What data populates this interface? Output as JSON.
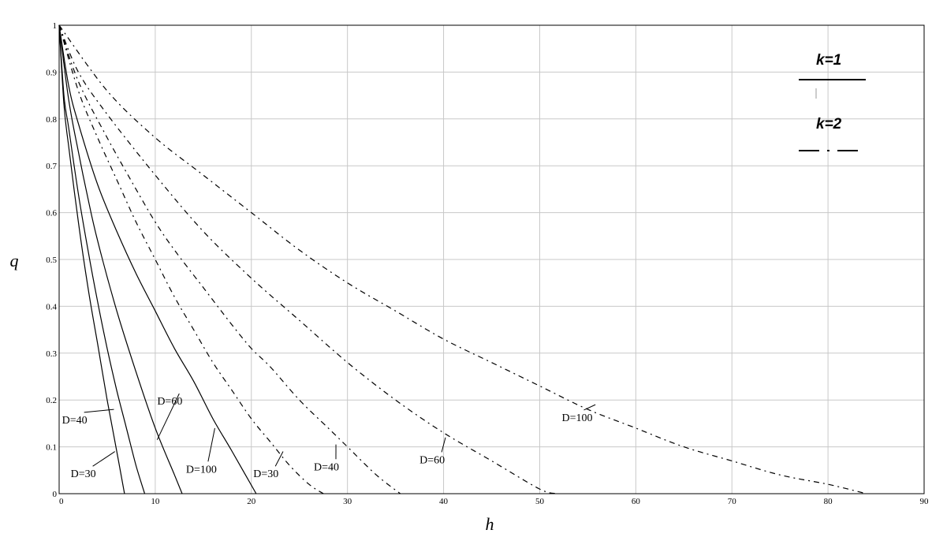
{
  "chart_data": {
    "type": "line",
    "xlabel": "h",
    "ylabel": "q",
    "xlim": [
      0,
      90
    ],
    "ylim": [
      0,
      1
    ],
    "x_ticks": [
      "0",
      "10",
      "20",
      "30",
      "40",
      "50",
      "60",
      "70",
      "80",
      "90"
    ],
    "y_ticks": [
      "0",
      "0.1",
      "0.2",
      "0.3",
      "0.4",
      "0.5",
      "0.6",
      "0.7",
      "0.8",
      "0.9",
      "1"
    ],
    "grid": true,
    "legend_position": "top-right",
    "legend": [
      {
        "label": "k=1",
        "line_style": "solid"
      },
      {
        "label": "k=2",
        "line_style": "dash-dot"
      }
    ],
    "series": [
      {
        "name": "D=30",
        "k": 1,
        "line_style": "solid",
        "x": [
          0,
          0.5,
          1,
          2,
          3,
          4,
          5,
          6,
          6.8
        ],
        "y": [
          1,
          0.83,
          0.74,
          0.58,
          0.44,
          0.32,
          0.2,
          0.09,
          0
        ]
      },
      {
        "name": "D=40",
        "k": 1,
        "line_style": "solid",
        "x": [
          0,
          0.5,
          1,
          2,
          3,
          4,
          5,
          6,
          7,
          8,
          8.9
        ],
        "y": [
          1,
          0.85,
          0.78,
          0.64,
          0.52,
          0.41,
          0.31,
          0.22,
          0.14,
          0.06,
          0
        ]
      },
      {
        "name": "D=60",
        "k": 1,
        "line_style": "solid",
        "x": [
          0,
          1,
          2,
          3,
          4,
          6,
          8,
          10,
          12,
          12.8
        ],
        "y": [
          1,
          0.84,
          0.73,
          0.63,
          0.54,
          0.39,
          0.26,
          0.14,
          0.04,
          0
        ]
      },
      {
        "name": "D=100",
        "k": 1,
        "line_style": "solid",
        "x": [
          0,
          1,
          2,
          4,
          6,
          8,
          10,
          12,
          14,
          16,
          18,
          20.5
        ],
        "y": [
          1,
          0.87,
          0.79,
          0.66,
          0.56,
          0.47,
          0.39,
          0.31,
          0.24,
          0.16,
          0.09,
          0
        ]
      },
      {
        "name": "D=30",
        "k": 2,
        "line_style": "dash-dot",
        "x": [
          0,
          2,
          4,
          6,
          8,
          10,
          12,
          14,
          16,
          18,
          20,
          22,
          24,
          26,
          27.5
        ],
        "y": [
          1,
          0.86,
          0.76,
          0.67,
          0.58,
          0.5,
          0.42,
          0.35,
          0.28,
          0.22,
          0.16,
          0.11,
          0.06,
          0.02,
          0
        ]
      },
      {
        "name": "D=40",
        "k": 2,
        "line_style": "dash-dot",
        "x": [
          0,
          2,
          5,
          8,
          10,
          12,
          15,
          18,
          20,
          22,
          25,
          28,
          30,
          33,
          35.5
        ],
        "y": [
          1,
          0.88,
          0.76,
          0.65,
          0.58,
          0.52,
          0.44,
          0.36,
          0.31,
          0.27,
          0.2,
          0.14,
          0.1,
          0.04,
          0
        ]
      },
      {
        "name": "D=60",
        "k": 2,
        "line_style": "dash-dot",
        "x": [
          0,
          2,
          5,
          10,
          15,
          20,
          25,
          30,
          35,
          40,
          45,
          50,
          51.8
        ],
        "y": [
          1,
          0.9,
          0.81,
          0.68,
          0.56,
          0.46,
          0.37,
          0.28,
          0.2,
          0.13,
          0.07,
          0.01,
          0
        ]
      },
      {
        "name": "D=100",
        "k": 2,
        "line_style": "dash-dot",
        "x": [
          0,
          5,
          10,
          15,
          20,
          25,
          30,
          35,
          40,
          45,
          50,
          55,
          60,
          65,
          70,
          75,
          80,
          84
        ],
        "y": [
          1,
          0.86,
          0.76,
          0.68,
          0.6,
          0.52,
          0.45,
          0.39,
          0.33,
          0.28,
          0.23,
          0.18,
          0.14,
          0.1,
          0.07,
          0.04,
          0.02,
          0
        ]
      }
    ]
  }
}
